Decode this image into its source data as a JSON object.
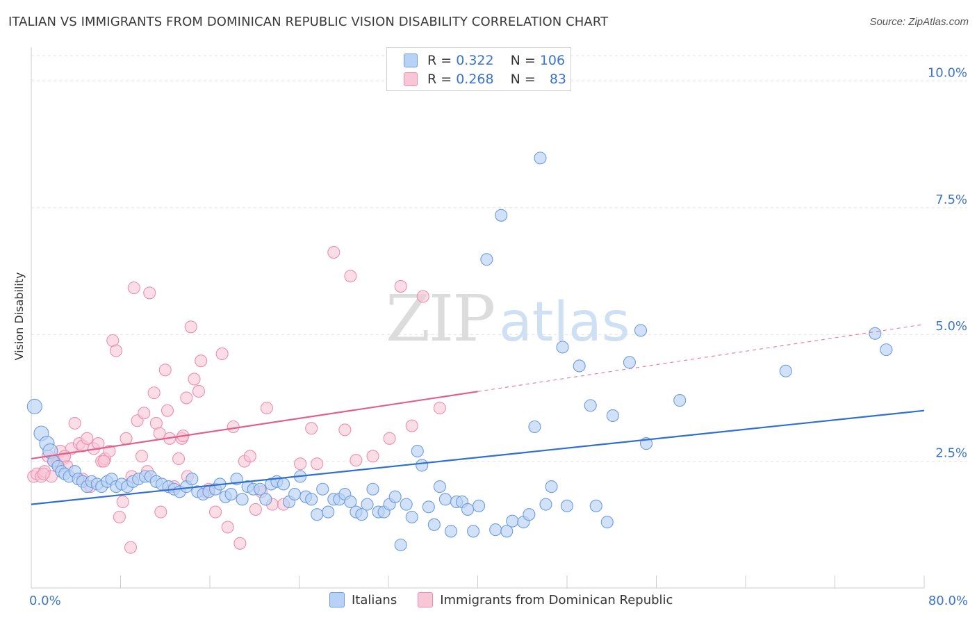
{
  "title": "ITALIAN VS IMMIGRANTS FROM DOMINICAN REPUBLIC VISION DISABILITY CORRELATION CHART",
  "source": "Source: ZipAtlas.com",
  "watermark": {
    "zip": "ZIP",
    "atlas": "atlas"
  },
  "colors": {
    "blue_fill": "#b8d2f5",
    "blue_stroke": "#6d9be0",
    "blue_line": "#2f6fd1",
    "pink_fill": "#f9c6d6",
    "pink_stroke": "#ec8fae",
    "pink_line": "#e0608a",
    "tick_label": "#3a74c9",
    "grid": "#e0e0e0"
  },
  "legend": {
    "rows": [
      {
        "r_label": "R = ",
        "r_value": "0.322",
        "n_label": "N = ",
        "n_value": "106",
        "color": "#b8d2f5"
      },
      {
        "r_label": "R = ",
        "r_value": "0.268",
        "n_label": "N = ",
        "n_value": "83",
        "color": "#f9c6d6"
      }
    ]
  },
  "chart_data": {
    "type": "scatter",
    "title": "ITALIAN VS IMMIGRANTS FROM DOMINICAN REPUBLIC VISION DISABILITY CORRELATION CHART",
    "xlabel": "",
    "ylabel": "Vision Disability",
    "xlim": [
      0,
      80
    ],
    "ylim": [
      0,
      10.5
    ],
    "x_tick_labels": [
      "0.0%",
      "80.0%"
    ],
    "y_ticks": [
      2.5,
      5.0,
      7.5,
      10.0
    ],
    "y_tick_labels": [
      "2.5%",
      "5.0%",
      "7.5%",
      "10.0%"
    ],
    "grid": true,
    "legend_position": "bottom-center",
    "series": [
      {
        "name": "Italians",
        "color": "#b8d2f5",
        "trend": {
          "x": [
            0,
            80
          ],
          "y": [
            1.65,
            3.5
          ],
          "dashed_from": null
        },
        "points": [
          [
            0.3,
            3.58
          ],
          [
            0.9,
            3.05
          ],
          [
            1.4,
            2.85
          ],
          [
            1.7,
            2.7
          ],
          [
            2.0,
            2.5
          ],
          [
            2.4,
            2.4
          ],
          [
            2.7,
            2.3
          ],
          [
            3.0,
            2.25
          ],
          [
            3.4,
            2.2
          ],
          [
            3.9,
            2.3
          ],
          [
            4.2,
            2.15
          ],
          [
            4.6,
            2.1
          ],
          [
            5.0,
            2.0
          ],
          [
            5.4,
            2.1
          ],
          [
            5.9,
            2.05
          ],
          [
            6.3,
            2.0
          ],
          [
            6.8,
            2.1
          ],
          [
            7.2,
            2.15
          ],
          [
            7.6,
            2.0
          ],
          [
            8.1,
            2.05
          ],
          [
            8.6,
            2.0
          ],
          [
            9.1,
            2.1
          ],
          [
            9.6,
            2.15
          ],
          [
            10.2,
            2.2
          ],
          [
            10.7,
            2.2
          ],
          [
            11.2,
            2.1
          ],
          [
            11.7,
            2.05
          ],
          [
            12.3,
            2.0
          ],
          [
            12.8,
            1.95
          ],
          [
            13.3,
            1.9
          ],
          [
            13.9,
            2.0
          ],
          [
            14.4,
            2.15
          ],
          [
            14.9,
            1.9
          ],
          [
            15.4,
            1.85
          ],
          [
            15.9,
            1.9
          ],
          [
            16.5,
            1.95
          ],
          [
            16.9,
            2.05
          ],
          [
            17.4,
            1.8
          ],
          [
            17.9,
            1.85
          ],
          [
            18.4,
            2.15
          ],
          [
            18.9,
            1.75
          ],
          [
            19.4,
            2.0
          ],
          [
            19.9,
            1.95
          ],
          [
            20.5,
            1.95
          ],
          [
            21.0,
            1.75
          ],
          [
            21.5,
            2.05
          ],
          [
            22.0,
            2.1
          ],
          [
            22.6,
            2.05
          ],
          [
            23.1,
            1.7
          ],
          [
            23.6,
            1.85
          ],
          [
            24.1,
            2.2
          ],
          [
            24.6,
            1.8
          ],
          [
            25.1,
            1.75
          ],
          [
            25.6,
            1.45
          ],
          [
            26.1,
            1.95
          ],
          [
            26.6,
            1.5
          ],
          [
            27.1,
            1.75
          ],
          [
            27.6,
            1.75
          ],
          [
            28.1,
            1.85
          ],
          [
            28.6,
            1.7
          ],
          [
            29.1,
            1.5
          ],
          [
            29.6,
            1.45
          ],
          [
            30.1,
            1.65
          ],
          [
            30.6,
            1.95
          ],
          [
            31.1,
            1.5
          ],
          [
            31.6,
            1.5
          ],
          [
            32.1,
            1.65
          ],
          [
            32.6,
            1.8
          ],
          [
            33.1,
            0.85
          ],
          [
            33.6,
            1.65
          ],
          [
            34.1,
            1.4
          ],
          [
            34.6,
            2.7
          ],
          [
            35.0,
            2.42
          ],
          [
            35.6,
            1.6
          ],
          [
            36.1,
            1.25
          ],
          [
            36.6,
            2.0
          ],
          [
            37.1,
            1.75
          ],
          [
            37.6,
            1.12
          ],
          [
            38.1,
            1.7
          ],
          [
            38.6,
            1.7
          ],
          [
            39.1,
            1.55
          ],
          [
            39.6,
            1.12
          ],
          [
            40.1,
            1.62
          ],
          [
            40.8,
            6.48
          ],
          [
            41.6,
            1.15
          ],
          [
            42.1,
            7.35
          ],
          [
            42.6,
            1.12
          ],
          [
            43.1,
            1.32
          ],
          [
            44.1,
            1.3
          ],
          [
            44.6,
            1.45
          ],
          [
            45.1,
            3.18
          ],
          [
            45.6,
            8.48
          ],
          [
            46.6,
            2.0
          ],
          [
            46.1,
            1.65
          ],
          [
            47.6,
            4.75
          ],
          [
            48.0,
            1.62
          ],
          [
            49.1,
            4.38
          ],
          [
            50.1,
            3.6
          ],
          [
            50.6,
            1.62
          ],
          [
            51.6,
            1.3
          ],
          [
            52.1,
            3.4
          ],
          [
            53.6,
            4.45
          ],
          [
            55.1,
            2.85
          ],
          [
            54.6,
            5.08
          ],
          [
            58.1,
            3.7
          ],
          [
            67.6,
            4.28
          ],
          [
            75.6,
            5.02
          ],
          [
            76.6,
            4.7
          ]
        ]
      },
      {
        "name": "Immigrants from Dominican Republic",
        "color": "#f9c6d6",
        "trend": {
          "x": [
            0,
            80
          ],
          "y": [
            2.55,
            5.2
          ],
          "dashed_from": 40
        },
        "points": [
          [
            0.2,
            2.2
          ],
          [
            0.5,
            2.25
          ],
          [
            0.9,
            2.2
          ],
          [
            1.2,
            2.3
          ],
          [
            1.5,
            2.6
          ],
          [
            1.8,
            2.2
          ],
          [
            2.0,
            2.5
          ],
          [
            2.3,
            2.45
          ],
          [
            2.6,
            2.7
          ],
          [
            2.9,
            2.55
          ],
          [
            3.2,
            2.4
          ],
          [
            3.6,
            2.75
          ],
          [
            3.9,
            3.25
          ],
          [
            4.3,
            2.85
          ],
          [
            4.6,
            2.8
          ],
          [
            5.0,
            2.95
          ],
          [
            5.3,
            2.0
          ],
          [
            5.6,
            2.75
          ],
          [
            6.0,
            2.85
          ],
          [
            6.3,
            2.5
          ],
          [
            6.6,
            2.55
          ],
          [
            7.0,
            2.7
          ],
          [
            7.3,
            4.88
          ],
          [
            7.6,
            4.68
          ],
          [
            7.9,
            1.4
          ],
          [
            8.2,
            1.7
          ],
          [
            8.5,
            2.95
          ],
          [
            8.9,
            0.8
          ],
          [
            9.2,
            5.92
          ],
          [
            9.5,
            3.3
          ],
          [
            9.9,
            2.6
          ],
          [
            10.1,
            3.45
          ],
          [
            10.4,
            2.3
          ],
          [
            10.6,
            5.82
          ],
          [
            11.0,
            3.85
          ],
          [
            11.2,
            3.25
          ],
          [
            11.5,
            3.05
          ],
          [
            11.6,
            1.5
          ],
          [
            12.0,
            4.3
          ],
          [
            12.2,
            3.5
          ],
          [
            12.4,
            2.95
          ],
          [
            12.8,
            2.0
          ],
          [
            13.2,
            2.55
          ],
          [
            13.5,
            2.95
          ],
          [
            13.9,
            3.75
          ],
          [
            14.3,
            5.15
          ],
          [
            14.6,
            4.12
          ],
          [
            15.0,
            3.88
          ],
          [
            15.2,
            4.48
          ],
          [
            15.9,
            1.95
          ],
          [
            16.5,
            1.5
          ],
          [
            17.1,
            4.62
          ],
          [
            17.6,
            1.2
          ],
          [
            18.1,
            3.18
          ],
          [
            18.7,
            0.88
          ],
          [
            19.1,
            2.5
          ],
          [
            19.6,
            2.6
          ],
          [
            20.1,
            1.55
          ],
          [
            21.1,
            3.55
          ],
          [
            21.6,
            1.65
          ],
          [
            22.6,
            1.65
          ],
          [
            24.1,
            2.45
          ],
          [
            25.1,
            3.15
          ],
          [
            25.6,
            2.45
          ],
          [
            27.1,
            6.62
          ],
          [
            28.1,
            3.12
          ],
          [
            28.6,
            6.15
          ],
          [
            29.1,
            2.52
          ],
          [
            30.6,
            2.6
          ],
          [
            32.1,
            2.95
          ],
          [
            33.1,
            5.95
          ],
          [
            34.1,
            3.2
          ],
          [
            35.1,
            5.75
          ],
          [
            36.6,
            3.55
          ],
          [
            3.0,
            2.6
          ],
          [
            6.5,
            2.5
          ],
          [
            1.1,
            2.25
          ],
          [
            14.0,
            2.2
          ],
          [
            15.6,
            1.9
          ],
          [
            13.6,
            3.0
          ],
          [
            20.6,
            1.9
          ],
          [
            4.6,
            2.15
          ],
          [
            9.0,
            2.2
          ]
        ]
      }
    ]
  },
  "bottom_legend": [
    "Italians",
    "Immigrants from Dominican Republic"
  ]
}
